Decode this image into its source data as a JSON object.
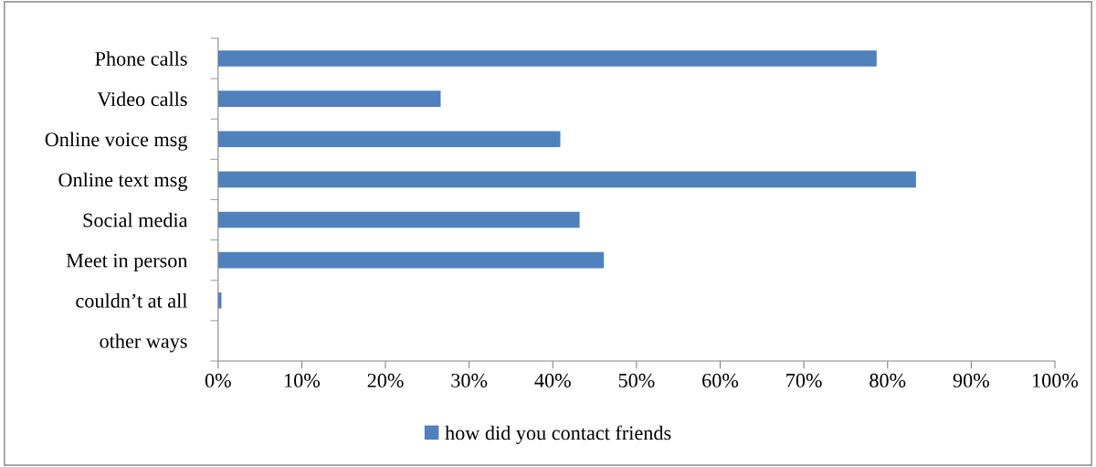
{
  "chart_data": {
    "type": "bar",
    "orientation": "horizontal",
    "categories": [
      "Phone calls",
      "Video calls",
      "Online voice msg",
      "Online text msg",
      "Social media",
      "Meet in person",
      "couldn’t at all",
      "other ways"
    ],
    "series": [
      {
        "name": "how did you contact friends",
        "color": "#4f81bd",
        "values": [
          78.7,
          26.6,
          40.9,
          83.4,
          43.2,
          46.1,
          0.4,
          null
        ]
      }
    ],
    "xlim": [
      0,
      100
    ],
    "xticks": [
      {
        "value": 0,
        "label": "0%"
      },
      {
        "value": 10,
        "label": "10%"
      },
      {
        "value": 20,
        "label": "20%"
      },
      {
        "value": 30,
        "label": "30%"
      },
      {
        "value": 40,
        "label": "40%"
      },
      {
        "value": 50,
        "label": "50%"
      },
      {
        "value": 60,
        "label": "60%"
      },
      {
        "value": 70,
        "label": "70%"
      },
      {
        "value": 80,
        "label": "80%"
      },
      {
        "value": 90,
        "label": "90%"
      },
      {
        "value": 100,
        "label": "100%"
      }
    ],
    "grid": false,
    "legend": "bottom"
  }
}
